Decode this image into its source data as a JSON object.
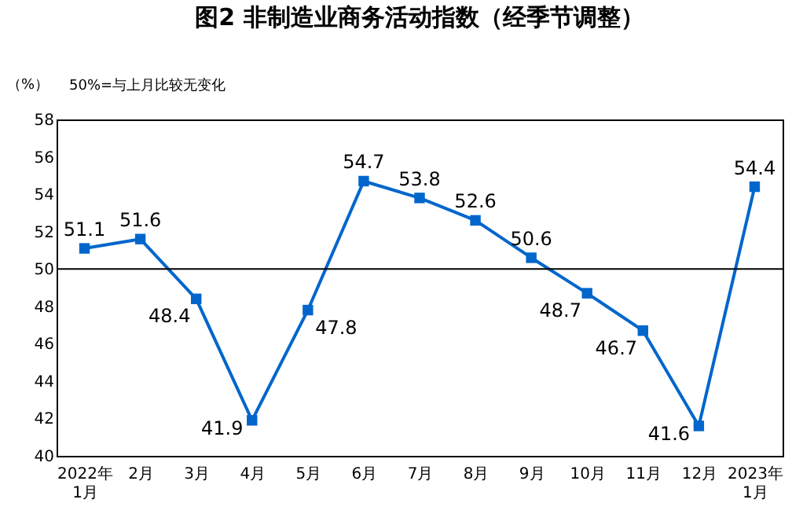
{
  "chart_data": {
    "type": "line",
    "title": "图2  非制造业商务活动指数（经季节调整）",
    "ylabel": "（%）",
    "annotations": [
      "50%=与上月比较无变化"
    ],
    "categories": [
      "2022年\n1月",
      "2月",
      "3月",
      "4月",
      "5月",
      "6月",
      "7月",
      "8月",
      "9月",
      "10月",
      "11月",
      "12月",
      "2023年\n1月"
    ],
    "series": [
      {
        "color": "#0066cc",
        "values": [
          51.1,
          51.6,
          48.4,
          41.9,
          47.8,
          54.7,
          53.8,
          52.6,
          50.6,
          48.7,
          46.7,
          41.6,
          54.4
        ]
      }
    ],
    "ylim": [
      40,
      58
    ],
    "yticks": [
      40,
      42,
      44,
      46,
      48,
      50,
      52,
      54,
      56,
      58
    ],
    "ref_lines": [
      {
        "axis": "y",
        "value": 50,
        "color": "#000000"
      }
    ],
    "data_labels": true,
    "marker": "square",
    "line_style": "solid",
    "grid": false,
    "legend": false
  }
}
